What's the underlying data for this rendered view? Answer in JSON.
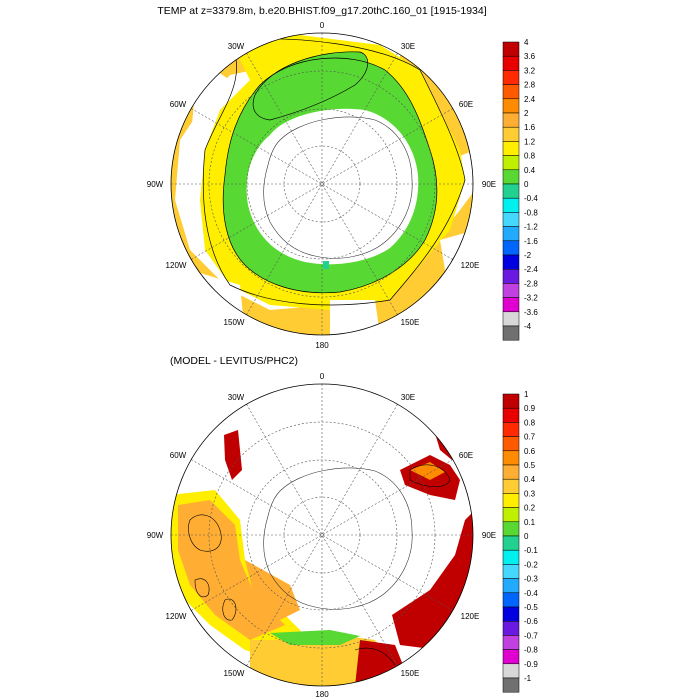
{
  "panel1": {
    "title": "TEMP at z=3379.8m, b.e20.BHIST.f09_g17.20thC.160_01 [1915-1934]",
    "colorbar_labels": [
      "4",
      "3.6",
      "3.2",
      "2.8",
      "2.4",
      "2",
      "1.6",
      "1.2",
      "0.8",
      "0.4",
      "0",
      "-0.4",
      "-0.8",
      "-1.2",
      "-1.6",
      "-2",
      "-2.4",
      "-2.8",
      "-3.2",
      "-3.6",
      "-4"
    ]
  },
  "panel2": {
    "title": "(MODEL - LEVITUS/PHC2)",
    "colorbar_labels": [
      "1",
      "0.9",
      "0.8",
      "0.7",
      "0.6",
      "0.5",
      "0.4",
      "0.3",
      "0.2",
      "0.1",
      "0",
      "-0.1",
      "-0.2",
      "-0.3",
      "-0.4",
      "-0.5",
      "-0.6",
      "-0.7",
      "-0.8",
      "-0.9",
      "-1"
    ]
  },
  "lon_labels": {
    "l0": "0",
    "l30e": "30E",
    "l60e": "60E",
    "l90e": "90E",
    "l120e": "120E",
    "l150e": "150E",
    "l180": "180",
    "l150w": "150W",
    "l120w": "120W",
    "l90w": "90W",
    "l60w": "60W",
    "l30w": "30W"
  },
  "colorbar_colors": [
    "#c00000",
    "#e80000",
    "#ff2a00",
    "#ff5a00",
    "#ff8c00",
    "#ffae33",
    "#ffcc33",
    "#ffee00",
    "#bff000",
    "#58d832",
    "#22d090",
    "#00f0f0",
    "#44d8ff",
    "#22aaff",
    "#0066ff",
    "#0000e0",
    "#6a1ae0",
    "#c040e0",
    "#e000d0",
    "#d8d8d8",
    "#707070"
  ]
}
